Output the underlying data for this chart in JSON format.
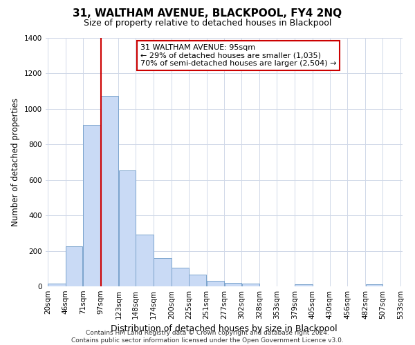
{
  "title": "31, WALTHAM AVENUE, BLACKPOOL, FY4 2NQ",
  "subtitle": "Size of property relative to detached houses in Blackpool",
  "xlabel": "Distribution of detached houses by size in Blackpool",
  "ylabel": "Number of detached properties",
  "bar_values": [
    15,
    225,
    910,
    1075,
    655,
    290,
    158,
    105,
    68,
    30,
    20,
    15,
    0,
    0,
    10,
    0,
    0,
    0,
    10,
    0
  ],
  "bin_edges": [
    20,
    46,
    71,
    97,
    123,
    148,
    174,
    200,
    225,
    251,
    277,
    302,
    328,
    353,
    379,
    405,
    430,
    456,
    482,
    507,
    533
  ],
  "bin_labels": [
    "20sqm",
    "46sqm",
    "71sqm",
    "97sqm",
    "123sqm",
    "148sqm",
    "174sqm",
    "200sqm",
    "225sqm",
    "251sqm",
    "277sqm",
    "302sqm",
    "328sqm",
    "353sqm",
    "379sqm",
    "405sqm",
    "430sqm",
    "456sqm",
    "482sqm",
    "507sqm",
    "533sqm"
  ],
  "bar_color": "#c9daf5",
  "bar_edge_color": "#7aa3cc",
  "red_line_x": 97,
  "red_line_color": "#cc0000",
  "ylim": [
    0,
    1400
  ],
  "yticks": [
    0,
    200,
    400,
    600,
    800,
    1000,
    1200,
    1400
  ],
  "annotation_title": "31 WALTHAM AVENUE: 95sqm",
  "annotation_line1": "← 29% of detached houses are smaller (1,035)",
  "annotation_line2": "70% of semi-detached houses are larger (2,504) →",
  "annotation_box_facecolor": "#ffffff",
  "annotation_box_edgecolor": "#cc0000",
  "footer_line1": "Contains HM Land Registry data © Crown copyright and database right 2024.",
  "footer_line2": "Contains public sector information licensed under the Open Government Licence v3.0.",
  "background_color": "#ffffff",
  "grid_color": "#d0d8e8",
  "title_fontsize": 11,
  "subtitle_fontsize": 9,
  "ylabel_fontsize": 8.5,
  "xlabel_fontsize": 9,
  "tick_fontsize": 7.5,
  "annotation_fontsize": 8,
  "footer_fontsize": 6.5
}
